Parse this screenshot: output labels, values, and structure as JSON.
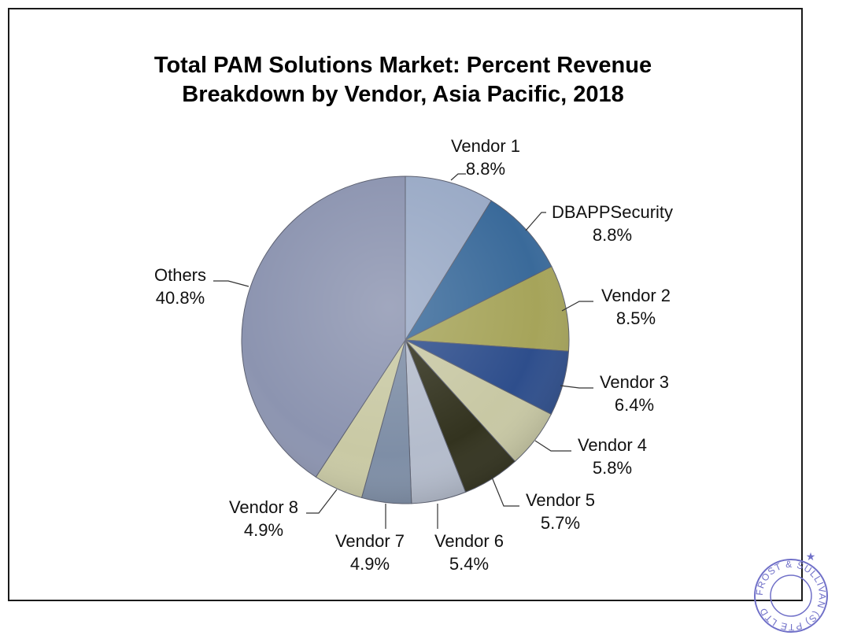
{
  "chart_data": {
    "type": "pie",
    "title": "Total PAM Solutions Market: Percent Revenue Breakdown by Vendor, Asia Pacific, 2018",
    "title_lines": [
      "Total PAM Solutions Market: Percent Revenue",
      "Breakdown by Vendor, Asia Pacific, 2018"
    ],
    "slices": [
      {
        "name": "Vendor 1",
        "value": 8.8,
        "label": "8.8%",
        "color": "#9aaac6"
      },
      {
        "name": "DBAPPSecurity",
        "value": 8.8,
        "label": "8.8%",
        "color": "#3a6a9a"
      },
      {
        "name": "Vendor 2",
        "value": 8.5,
        "label": "8.5%",
        "color": "#a6a45a"
      },
      {
        "name": "Vendor 3",
        "value": 6.4,
        "label": "6.4%",
        "color": "#2e4e8c"
      },
      {
        "name": "Vendor 4",
        "value": 5.8,
        "label": "5.8%",
        "color": "#c8c8a4"
      },
      {
        "name": "Vendor 5",
        "value": 5.7,
        "label": "5.7%",
        "color": "#33331f"
      },
      {
        "name": "Vendor 6",
        "value": 5.4,
        "label": "5.4%",
        "color": "#b4bccc"
      },
      {
        "name": "Vendor 7",
        "value": 4.9,
        "label": "4.9%",
        "color": "#7e8ea6"
      },
      {
        "name": "Vendor 8",
        "value": 4.9,
        "label": "4.9%",
        "color": "#c9c9a4"
      },
      {
        "name": "Others",
        "value": 40.8,
        "label": "40.8%",
        "color": "#8c94b0"
      }
    ],
    "start": "12 o'clock",
    "direction": "clockwise",
    "legend": "none"
  },
  "stamp": {
    "text": "FROST & SULLIVAN (S) PTE LTD",
    "color": "#7070c8"
  }
}
